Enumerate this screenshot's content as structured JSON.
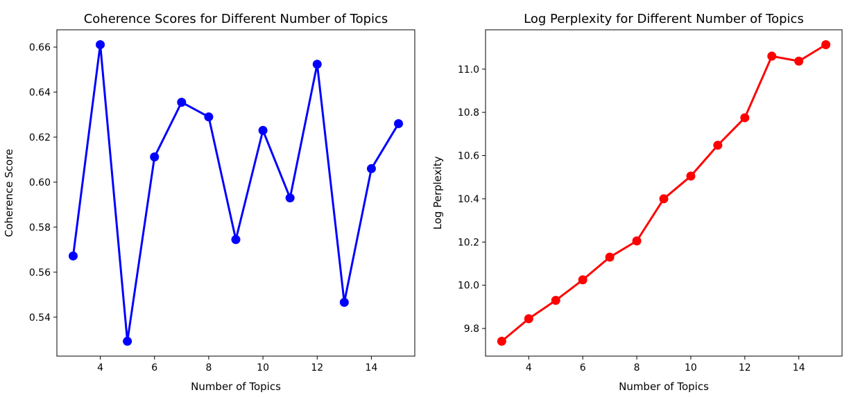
{
  "chart_data": [
    {
      "type": "line",
      "title": "Coherence Scores for Different Number of Topics",
      "xlabel": "Number of Topics",
      "ylabel": "Coherence Score",
      "x": [
        3,
        4,
        5,
        6,
        7,
        8,
        9,
        10,
        11,
        12,
        13,
        14,
        15
      ],
      "series": [
        {
          "values": [
            0.5672,
            0.6611,
            0.5293,
            0.6112,
            0.6355,
            0.629,
            0.5745,
            0.623,
            0.593,
            0.6524,
            0.5466,
            0.606,
            0.626
          ],
          "color": "#0000ff",
          "marker": "circle"
        }
      ],
      "xticks": [
        4,
        6,
        8,
        10,
        12,
        14
      ],
      "yticks": [
        0.54,
        0.56,
        0.58,
        0.6,
        0.62,
        0.64,
        0.66
      ],
      "ytick_decimals": 2,
      "xlim": [
        2.4,
        15.6
      ],
      "ylim": [
        0.5227,
        0.6677
      ],
      "grid": false
    },
    {
      "type": "line",
      "title": "Log Perplexity for Different Number of Topics",
      "xlabel": "Number of Topics",
      "ylabel": "Log Perplexity",
      "x": [
        3,
        4,
        5,
        6,
        7,
        8,
        9,
        10,
        11,
        12,
        13,
        14,
        15
      ],
      "series": [
        {
          "values": [
            9.741,
            9.845,
            9.93,
            10.025,
            10.13,
            10.205,
            10.4,
            10.505,
            10.648,
            10.775,
            11.06,
            11.037,
            11.113
          ],
          "color": "#ff0000",
          "marker": "circle"
        }
      ],
      "xticks": [
        4,
        6,
        8,
        10,
        12,
        14
      ],
      "yticks": [
        9.8,
        10.0,
        10.2,
        10.4,
        10.6,
        10.8,
        11.0
      ],
      "ytick_decimals": 1,
      "xlim": [
        2.4,
        15.6
      ],
      "ylim": [
        9.672,
        11.182
      ],
      "grid": false
    }
  ]
}
